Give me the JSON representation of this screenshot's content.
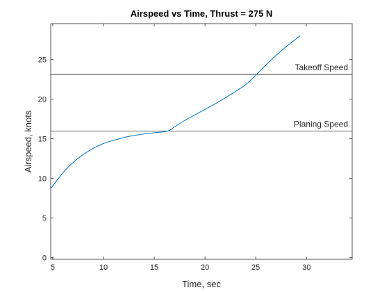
{
  "chart_data": {
    "type": "line",
    "title": "Airspeed vs Time, Thrust = 275 N",
    "xlabel": "Time, sec",
    "ylabel": "Airspeed, knots",
    "xlim": [
      4.8,
      34.5
    ],
    "ylim": [
      -0.2,
      29.5
    ],
    "xticks": [
      5,
      10,
      15,
      20,
      25,
      30
    ],
    "yticks": [
      0,
      5,
      10,
      15,
      20,
      25
    ],
    "grid": false,
    "series": [
      {
        "color": "#0072BD",
        "x": [
          4.8,
          6,
          7,
          8,
          9,
          10,
          11,
          12,
          13,
          14,
          15,
          16.3,
          17,
          18,
          19,
          20,
          21,
          22,
          23,
          24,
          25,
          26,
          27,
          28,
          29,
          29.4
        ],
        "y": [
          8.7,
          10.7,
          12.0,
          13.0,
          13.8,
          14.4,
          14.8,
          15.15,
          15.4,
          15.6,
          15.75,
          15.95,
          16.5,
          17.3,
          18.0,
          18.7,
          19.4,
          20.15,
          20.95,
          21.8,
          23.0,
          24.3,
          25.5,
          26.6,
          27.6,
          28.0
        ]
      }
    ],
    "reference_lines": [
      {
        "y": 23.1,
        "label": "Takeoff Speed",
        "color": "#262626"
      },
      {
        "y": 15.95,
        "label": "Planing Speed",
        "color": "#262626"
      }
    ]
  }
}
